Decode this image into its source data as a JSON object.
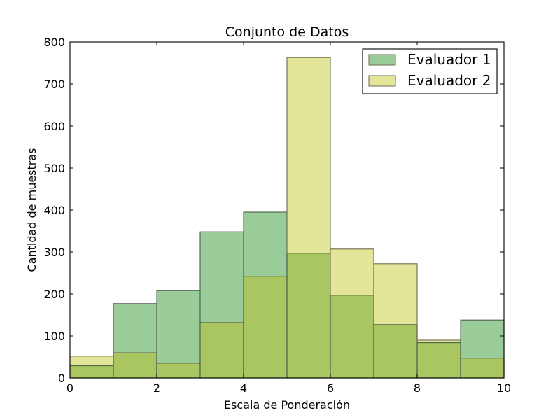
{
  "chart_data": {
    "type": "bar",
    "title": "Conjunto de Datos",
    "xlabel": "Escala de Ponderación",
    "ylabel": "Cantidad de muestras",
    "xlim": [
      0,
      10
    ],
    "ylim": [
      0,
      800
    ],
    "xticks": [
      "0",
      "2",
      "4",
      "6",
      "8",
      "10"
    ],
    "yticks": [
      "0",
      "100",
      "200",
      "300",
      "400",
      "500",
      "600",
      "700",
      "800"
    ],
    "bins": [
      [
        0,
        1
      ],
      [
        1,
        2
      ],
      [
        2,
        3
      ],
      [
        3,
        4
      ],
      [
        4,
        5
      ],
      [
        5,
        6
      ],
      [
        6,
        7
      ],
      [
        7,
        8
      ],
      [
        8,
        9
      ],
      [
        9,
        10
      ]
    ],
    "legend_position": "top-right",
    "grid": false,
    "series": [
      {
        "name": "Evaluador 1",
        "color": "#99cc99",
        "values": [
          29,
          177,
          208,
          348,
          395,
          297,
          197,
          127,
          84,
          138
        ]
      },
      {
        "name": "Evaluador 2",
        "color": "#e3e699",
        "values": [
          52,
          60,
          35,
          132,
          242,
          763,
          307,
          272,
          90,
          47
        ]
      }
    ],
    "overlap_color": "#aac660"
  }
}
